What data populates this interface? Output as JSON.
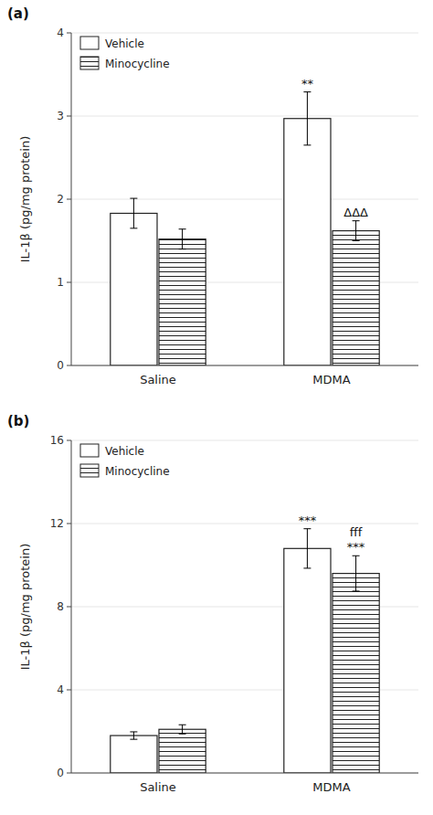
{
  "chart_data": [
    {
      "type": "bar",
      "title": "(a)",
      "ylabel": "IL-1β (pg/mg protein)",
      "categories": [
        "Saline",
        "MDMA"
      ],
      "series": [
        {
          "name": "Vehicle",
          "color": "white",
          "values": [
            1.83,
            2.97
          ],
          "errors": [
            0.18,
            0.32
          ]
        },
        {
          "name": "Minocycline",
          "color": "white",
          "values": [
            1.52,
            1.62
          ],
          "errors": [
            0.12,
            0.12
          ]
        }
      ],
      "annotations": [
        {
          "text": "**",
          "series": 0,
          "category": 1
        },
        {
          "text": "ΔΔΔ",
          "series": 1,
          "category": 1
        }
      ],
      "ylim": [
        0,
        4
      ],
      "yticks": [
        0,
        1,
        2,
        3,
        4
      ],
      "legend": "upper left"
    },
    {
      "type": "bar",
      "title": "(b)",
      "ylabel": "IL-1β (pg/mg protein)",
      "categories": [
        "Saline",
        "MDMA"
      ],
      "series": [
        {
          "name": "Vehicle",
          "color": "white",
          "values": [
            1.8,
            10.8
          ],
          "errors": [
            0.18,
            0.95
          ]
        },
        {
          "name": "Minocycline",
          "color": "white",
          "values": [
            2.1,
            9.6
          ],
          "errors": [
            0.22,
            0.85
          ]
        }
      ],
      "annotations": [
        {
          "text": "***",
          "series": 0,
          "category": 1
        },
        {
          "text": "***",
          "series": 1,
          "category": 1
        },
        {
          "text": "fff",
          "series": 1,
          "category": 1
        }
      ],
      "ylim": [
        0,
        16
      ],
      "yticks": [
        0,
        4,
        8,
        12,
        16
      ],
      "legend": "upper left"
    }
  ]
}
